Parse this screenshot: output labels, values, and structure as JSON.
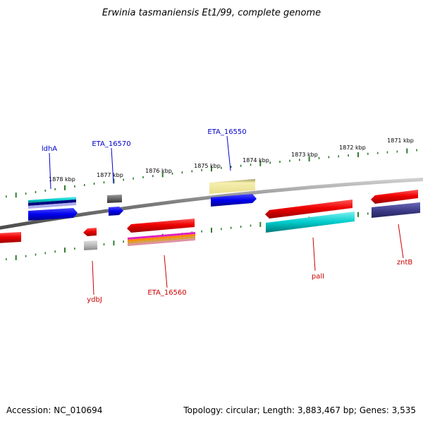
{
  "title": "Erwinia tasmaniensis Et1/99, complete genome",
  "footer": {
    "accession": "Accession: NC_010694",
    "summary": "Topology: circular; Length: 3,883,467 bp; Genes: 3,535"
  },
  "scale": {
    "unit": "kbp",
    "major_ticks": [
      "1878 kbp",
      "1877 kbp",
      "1876 kbp",
      "1875 kbp",
      "1874 kbp",
      "1873 kbp",
      "1872 kbp",
      "1871 kbp"
    ]
  },
  "colors": {
    "backbone": "#8a8a8a",
    "tick": "#2e7d2e",
    "forward_label": "#0000cc",
    "reverse_label": "#cc0000"
  },
  "gene_labels": {
    "forward": [
      "ldhA",
      "ETA_16570",
      "ETA_16550"
    ],
    "reverse": [
      "ydbJ",
      "ETA_16560",
      "palI",
      "zntB"
    ]
  }
}
